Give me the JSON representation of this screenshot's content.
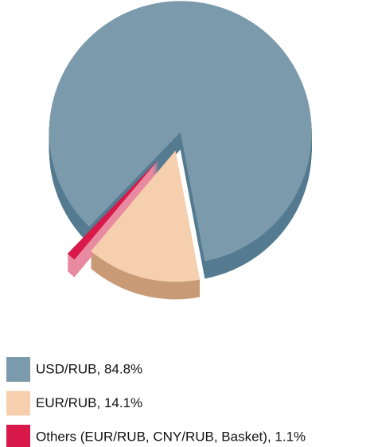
{
  "chart_data": {
    "type": "pie",
    "categories": [
      "USD/RUB, 84.8%",
      "EUR/RUB, 14.1%",
      "Others (EUR/RUB, CNY/RUB, Basket), 1.1%"
    ],
    "values": [
      84.8,
      14.1,
      1.1
    ],
    "colors": [
      "#7b9aab",
      "#f5cfae",
      "#d8194a"
    ],
    "side_colors": [
      "#557b91",
      "#c99a76",
      "#e88aa0"
    ]
  }
}
